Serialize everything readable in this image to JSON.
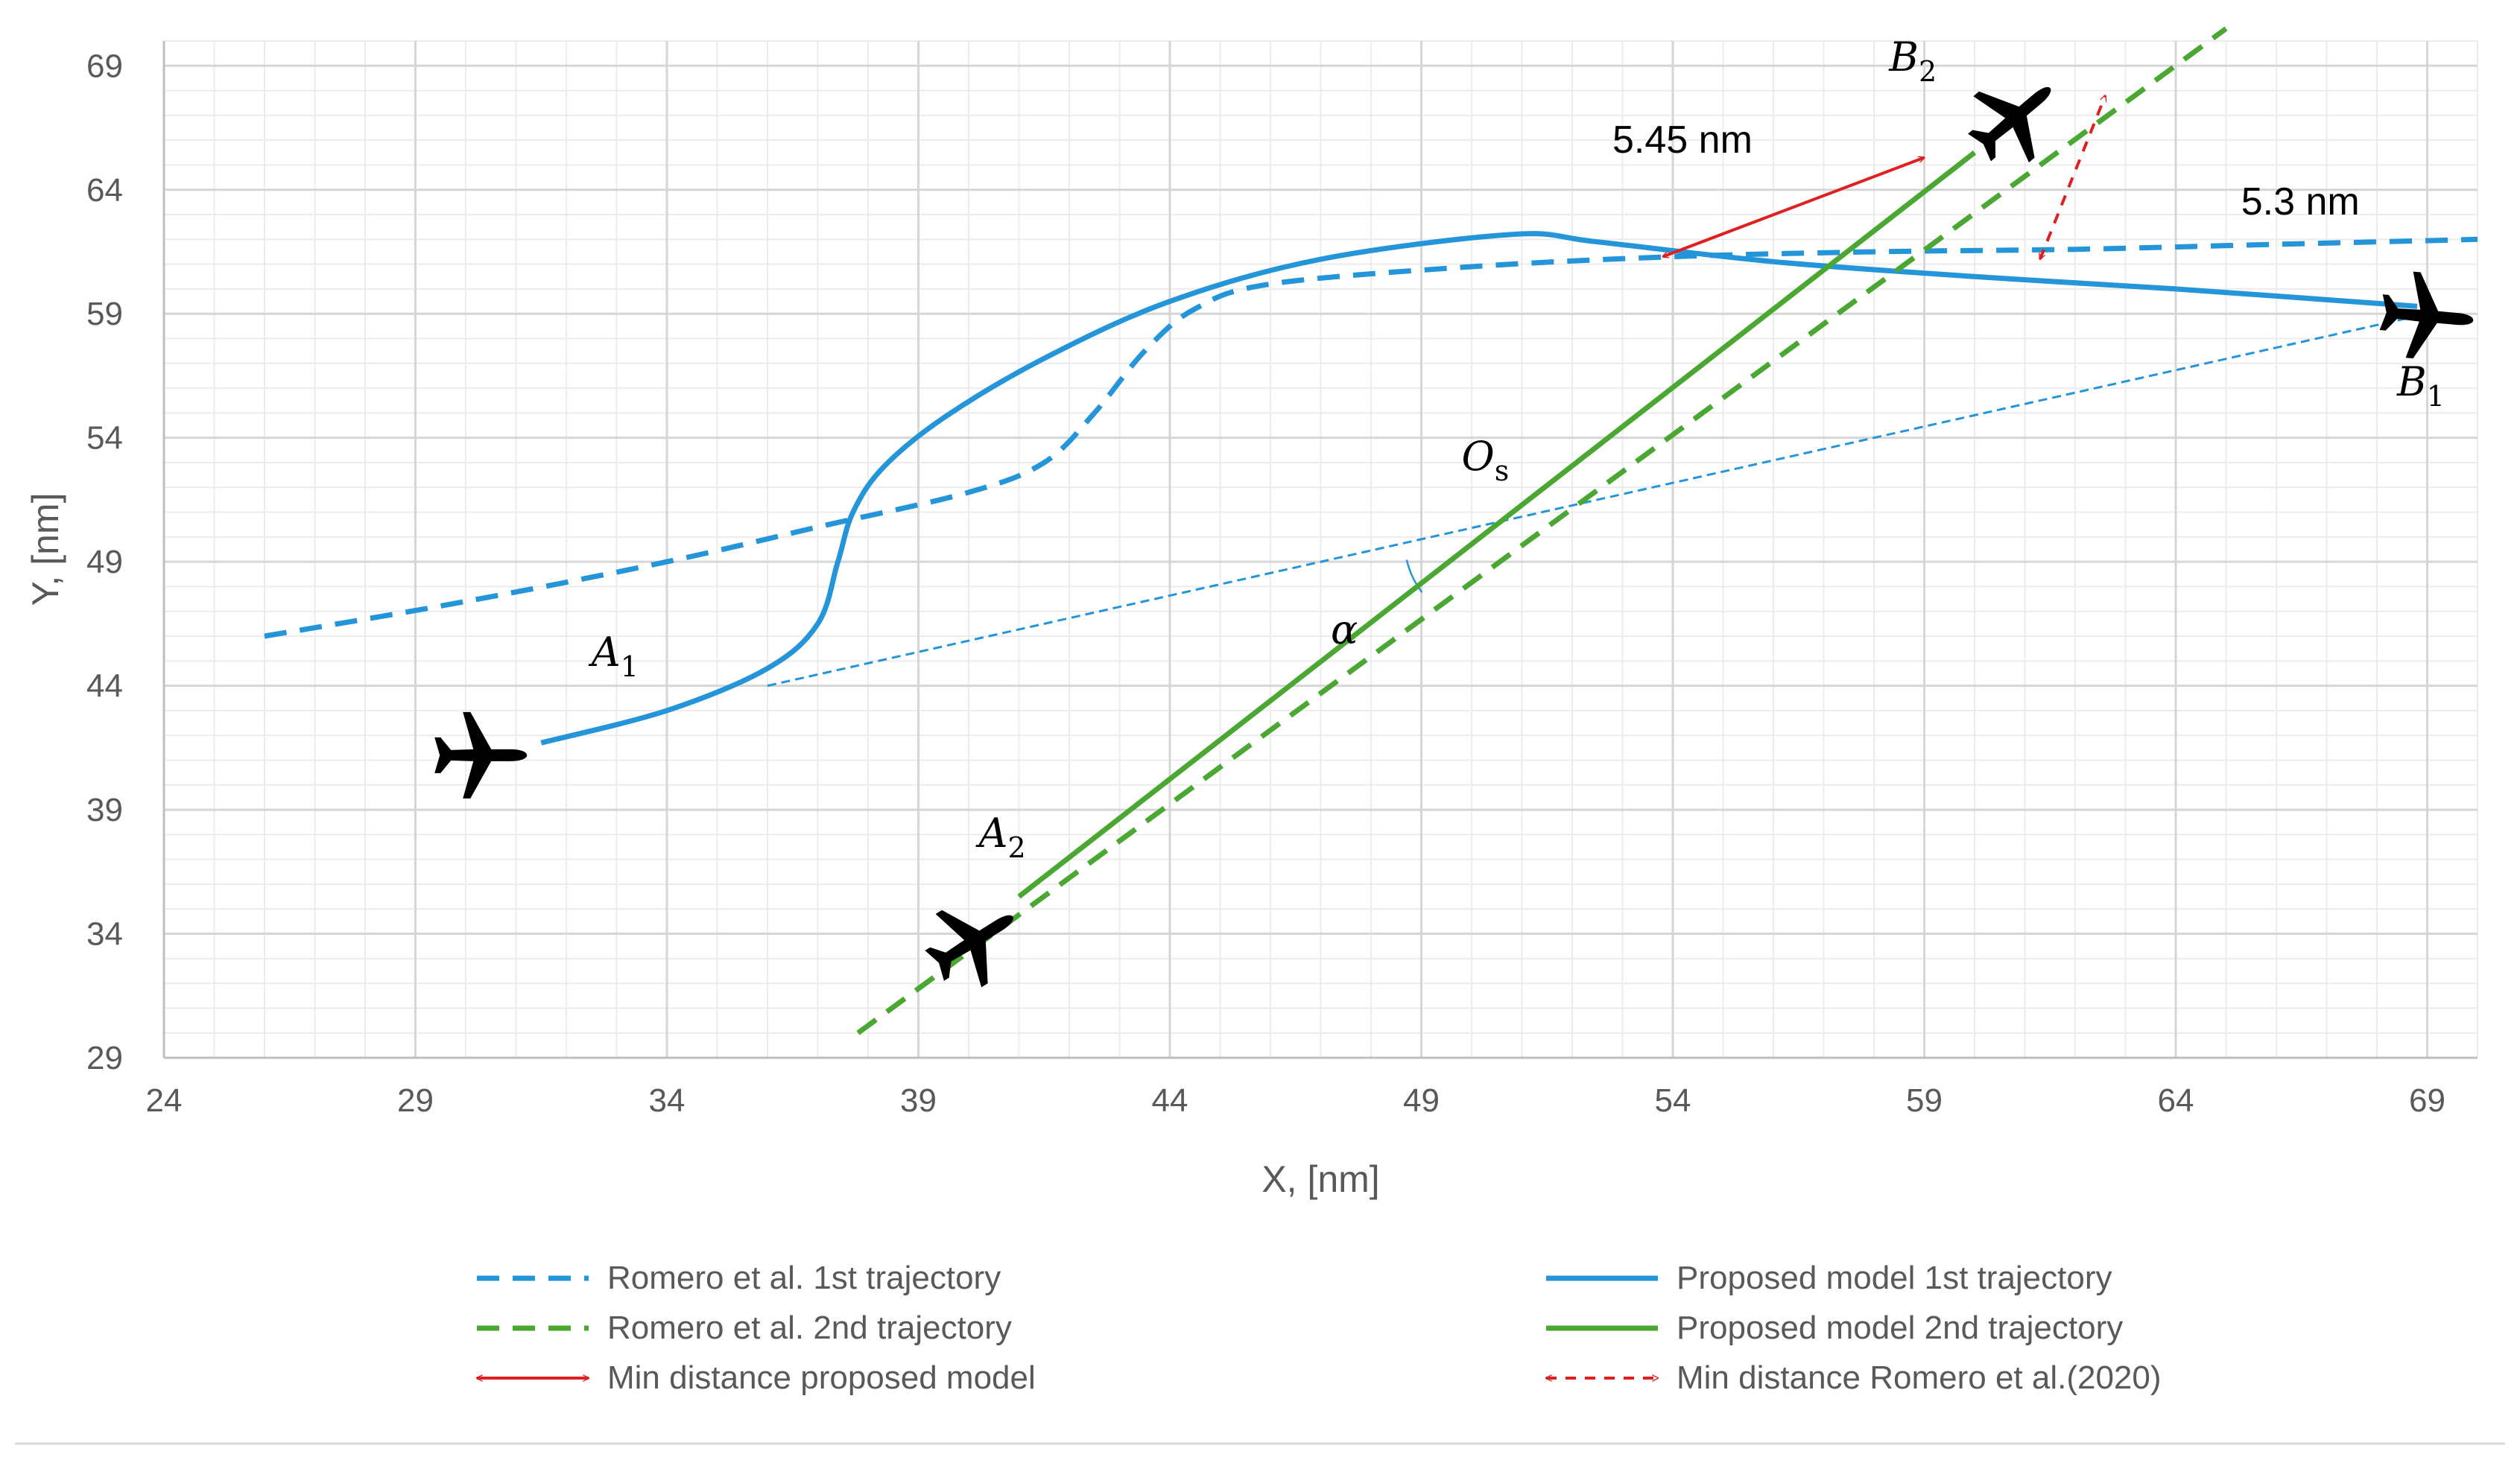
{
  "chart_data": {
    "type": "line",
    "title": "",
    "xlabel": "X, [nm]",
    "ylabel": "Y, [nm]",
    "xlim": [
      24,
      70
    ],
    "ylim": [
      29,
      70
    ],
    "x_ticks": [
      24,
      29,
      34,
      39,
      44,
      49,
      54,
      59,
      64,
      69
    ],
    "y_ticks": [
      29,
      34,
      39,
      44,
      49,
      54,
      59,
      64,
      69
    ],
    "grid": true,
    "legend_position": "bottom",
    "series": [
      {
        "name": "Romero et al. 1st trajectory",
        "color": "#2495d8",
        "dash": "dashed",
        "x": [
          26,
          30,
          34,
          37,
          40,
          41.5,
          42.5,
          43.5,
          44.5,
          46,
          50,
          54,
          58,
          62,
          66,
          70
        ],
        "y": [
          46,
          47.4,
          49,
          50.4,
          51.8,
          53,
          55,
          57.5,
          59.2,
          60.2,
          60.9,
          61.3,
          61.5,
          61.6,
          61.8,
          62
        ]
      },
      {
        "name": "Proposed model 1st trajectory",
        "color": "#2495d8",
        "dash": "solid",
        "x": [
          31.5,
          34,
          36,
          37,
          37.4,
          37.7,
          38.3,
          39.5,
          41.5,
          44,
          47,
          50.8,
          52.5,
          56,
          60,
          64,
          68.8
        ],
        "y": [
          41.7,
          43,
          44.7,
          46.5,
          49,
          51,
          52.8,
          54.8,
          57.2,
          59.5,
          61.2,
          62.2,
          61.9,
          61.1,
          60.5,
          60,
          59.3
        ]
      },
      {
        "name": "Romero et al. 2nd trajectory",
        "color": "#4aa832",
        "dash": "dashed",
        "x": [
          37.8,
          65
        ],
        "y": [
          30,
          70.5
        ]
      },
      {
        "name": "Proposed model 2nd trajectory",
        "color": "#4aa832",
        "dash": "solid",
        "x": [
          41,
          60
        ],
        "y": [
          35.5,
          65.5
        ]
      },
      {
        "name": "Min distance proposed model",
        "color": "#e02020",
        "dash": "solid",
        "arrow": "both",
        "x": [
          53.8,
          59
        ],
        "y": [
          61.3,
          65.3
        ]
      },
      {
        "name": "Min distance Romero et al.(2020)",
        "color": "#e02020",
        "dash": "dashed",
        "arrow": "both",
        "x": [
          61.3,
          62.6
        ],
        "y": [
          61.2,
          67.8
        ]
      }
    ],
    "reference_lines": [
      {
        "name": "A1-B1 line",
        "color": "#2495d8",
        "x": [
          36,
          69
        ],
        "y": [
          44,
          59
        ]
      }
    ],
    "annotations": [
      {
        "id": "dist_proposed",
        "text": "5.45 nm",
        "x": 52.8,
        "y": 65.5
      },
      {
        "id": "dist_romero",
        "text": "5.3 nm",
        "x": 65.3,
        "y": 63
      },
      {
        "id": "A1",
        "base": "A",
        "sub": "1",
        "x": 32.5,
        "y": 44.8
      },
      {
        "id": "A2",
        "base": "A",
        "sub": "2",
        "x": 40.2,
        "y": 37.5
      },
      {
        "id": "B1",
        "base": "B",
        "sub": "1",
        "x": 68.4,
        "y": 55.7
      },
      {
        "id": "B2",
        "base": "B",
        "sub": "2",
        "x": 58.3,
        "y": 68.8
      },
      {
        "id": "Os",
        "base": "O",
        "sub": "s",
        "x": 49.8,
        "y": 52.7
      },
      {
        "id": "alpha",
        "text": "α",
        "x": 47.2,
        "y": 45.7
      }
    ],
    "aircraft": [
      {
        "id": "A1",
        "x": 30.3,
        "y": 41.2,
        "heading": 90
      },
      {
        "id": "A2",
        "x": 40.1,
        "y": 33.7,
        "heading": 58
      },
      {
        "id": "B1",
        "x": 69,
        "y": 58.9,
        "heading": 95
      },
      {
        "id": "B2",
        "x": 60.8,
        "y": 66.9,
        "heading": 50
      }
    ]
  }
}
